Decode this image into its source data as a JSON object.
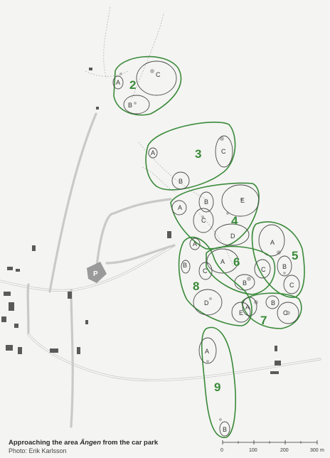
{
  "zones": [
    {
      "number": "2",
      "subareas": [
        "A",
        "B",
        "C"
      ]
    },
    {
      "number": "3",
      "subareas": [
        "A",
        "B",
        "C"
      ]
    },
    {
      "number": "4",
      "subareas": [
        "A",
        "B",
        "C",
        "D",
        "E"
      ]
    },
    {
      "number": "5",
      "subareas": [
        "A",
        "B",
        "C"
      ]
    },
    {
      "number": "6",
      "subareas": [
        "A",
        "B",
        "C"
      ]
    },
    {
      "number": "7",
      "subareas": [
        "A",
        "B",
        "C"
      ]
    },
    {
      "number": "8",
      "subareas": [
        "A",
        "B",
        "C",
        "D",
        "E"
      ]
    },
    {
      "number": "9",
      "subareas": [
        "A",
        "B"
      ]
    }
  ],
  "parking": {
    "label": "P"
  },
  "caption": {
    "before": "Approaching the area ",
    "place": "Ängen",
    "after": " from the car park",
    "credit": "Photo: Erik Karlsson"
  },
  "scale_bar": {
    "ticks": [
      "0",
      "100",
      "200",
      "300"
    ],
    "unit": "m"
  },
  "colors": {
    "zone_outline": "#3a8a3a",
    "subarea_outline": "#4a4a4a",
    "parking": "#9a9a9a"
  }
}
